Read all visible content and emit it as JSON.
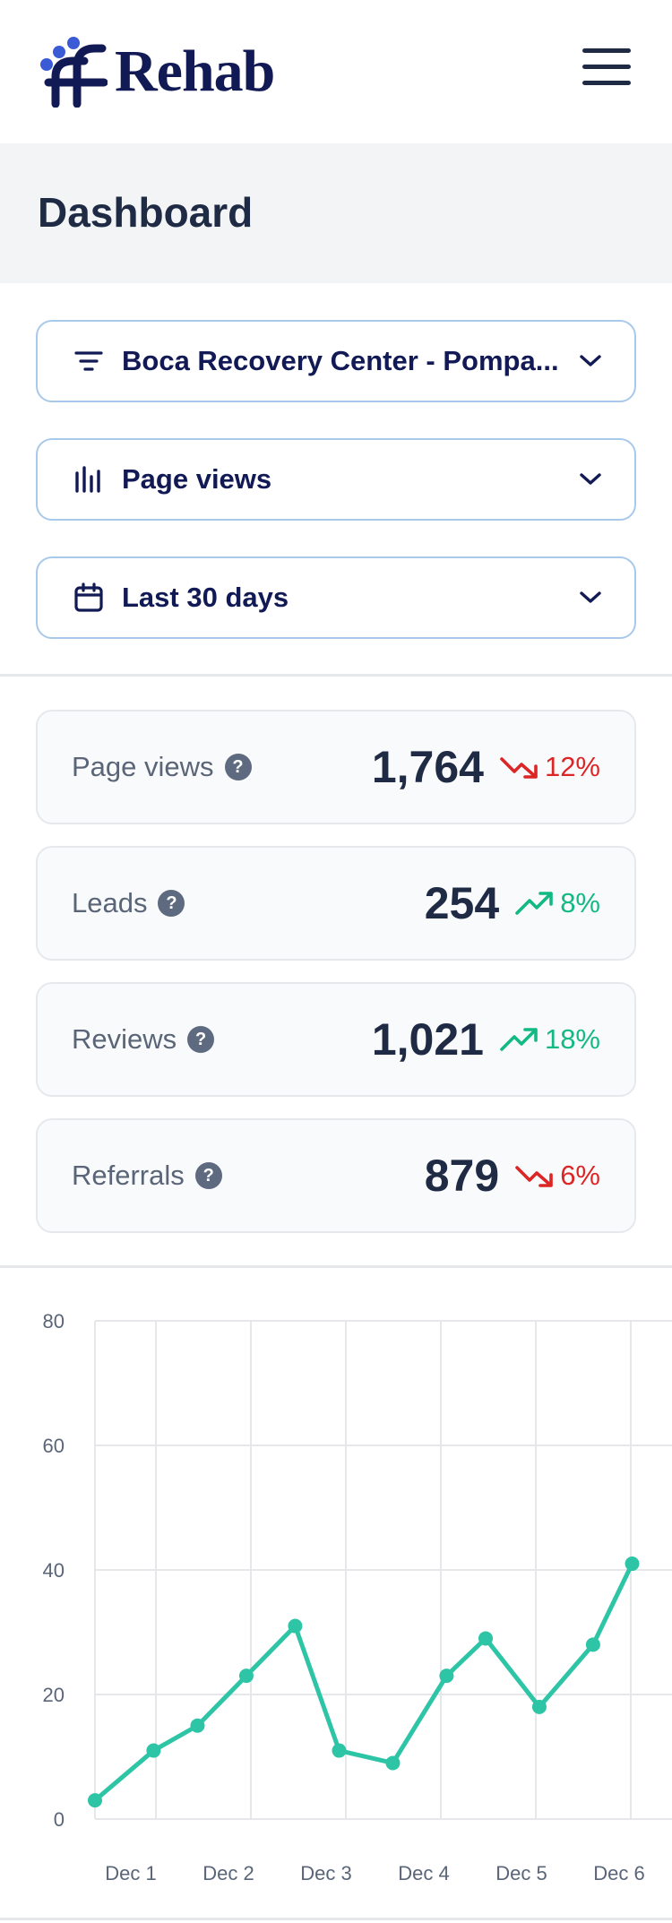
{
  "header": {
    "brand": "Rehab",
    "brand_color": "#121a55",
    "menu_icon": "hamburger-menu-icon"
  },
  "page": {
    "title": "Dashboard"
  },
  "filters": {
    "location": {
      "icon": "filter-lines-icon",
      "value": "Boca Recovery Center - Pompa..."
    },
    "metric": {
      "icon": "bar-chart-icon",
      "value": "Page views"
    },
    "period": {
      "icon": "calendar-icon",
      "value": "Last 30 days"
    }
  },
  "stats": [
    {
      "name": "Page views",
      "value": "1,764",
      "direction": "down",
      "change": "12%"
    },
    {
      "name": "Leads",
      "value": "254",
      "direction": "up",
      "change": "8%"
    },
    {
      "name": "Reviews",
      "value": "1,021",
      "direction": "up",
      "change": "18%"
    },
    {
      "name": "Referrals",
      "value": "879",
      "direction": "down",
      "change": "6%"
    }
  ],
  "colors": {
    "up": "#12b981",
    "down": "#dc2626",
    "line": "#2ec4a6",
    "accent_border": "#a9c9ea"
  },
  "chart_data": {
    "type": "line",
    "title": "",
    "xlabel": "",
    "ylabel": "",
    "ylim": [
      0,
      80
    ],
    "yticks": [
      0,
      20,
      40,
      60,
      80
    ],
    "xticks": [
      "Dec 1",
      "Dec 2",
      "Dec 3",
      "Dec 4",
      "Dec 5",
      "Dec 6"
    ],
    "grid": true,
    "x": [
      0,
      0.6,
      1.05,
      1.55,
      2.05,
      2.5,
      3.05,
      3.6,
      4.0,
      4.55,
      5.1,
      5.5
    ],
    "series": [
      {
        "values": [
          3,
          11,
          15,
          23,
          31,
          11,
          9,
          23,
          29,
          18,
          28,
          41
        ]
      }
    ]
  }
}
